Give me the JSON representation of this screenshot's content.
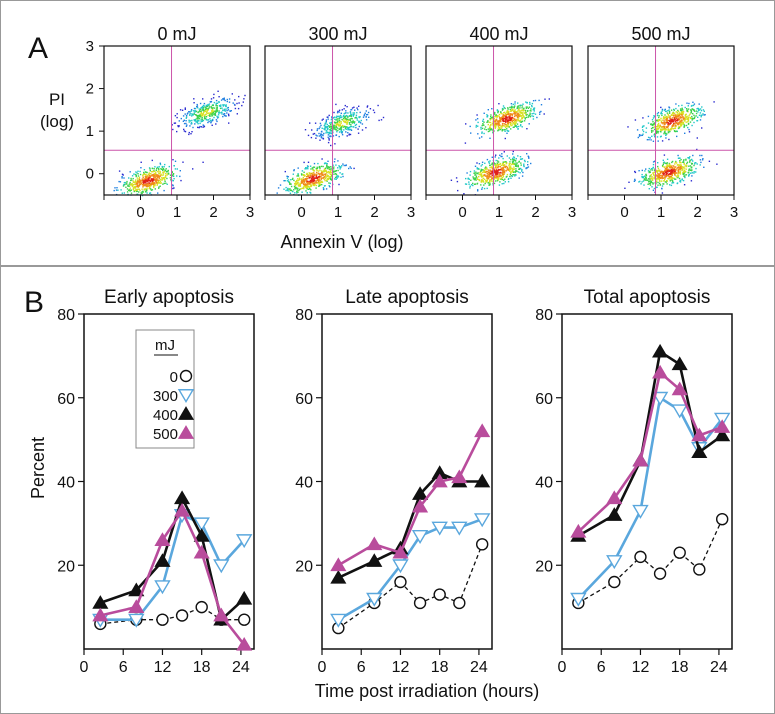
{
  "panel_a": {
    "letter": "A",
    "ylabel_line1": "PI",
    "ylabel_line2": "(log)",
    "xlabel": "Annexin V (log)",
    "x_ticks": [
      "0",
      "1",
      "2",
      "3"
    ],
    "y_ticks": [
      "0",
      "1",
      "2",
      "3"
    ],
    "plots": [
      {
        "title": "0 mJ"
      },
      {
        "title": "300 mJ"
      },
      {
        "title": "400 mJ"
      },
      {
        "title": "500 mJ"
      }
    ]
  },
  "panel_b": {
    "letter": "B",
    "ylabel": "Percent",
    "xlabel": "Time post irradiation (hours)",
    "legend": {
      "title": "mJ",
      "entries": [
        "0",
        "300",
        "400",
        "500"
      ]
    }
  },
  "colors": {
    "mj0": "#111111",
    "mj300": "#5aa7dd",
    "mj400": "#111111",
    "mj500": "#b94c9c",
    "gate": "#cc55aa",
    "frame": "#999999"
  },
  "chart_data": [
    {
      "type": "scatter",
      "title": "0 mJ",
      "xlabel": "Annexin V (log)",
      "ylabel": "PI (log)",
      "xlim": [
        -1,
        3
      ],
      "ylim": [
        -0.5,
        3
      ],
      "gate": {
        "x": 0.85,
        "y": 0.55
      },
      "clusters": [
        {
          "cx": 0.2,
          "cy": -0.15,
          "density": "high"
        },
        {
          "cx": 1.8,
          "cy": 1.45,
          "density": "medium"
        }
      ]
    },
    {
      "type": "scatter",
      "title": "300 mJ",
      "xlabel": "Annexin V (log)",
      "ylabel": "PI (log)",
      "xlim": [
        -1,
        3
      ],
      "ylim": [
        -0.5,
        3
      ],
      "gate": {
        "x": 0.85,
        "y": 0.55
      },
      "clusters": [
        {
          "cx": 0.3,
          "cy": -0.1,
          "density": "high"
        },
        {
          "cx": 1.1,
          "cy": 1.2,
          "density": "medium"
        }
      ]
    },
    {
      "type": "scatter",
      "title": "400 mJ",
      "xlabel": "Annexin V (log)",
      "ylabel": "PI (log)",
      "xlim": [
        -1,
        3
      ],
      "ylim": [
        -0.5,
        3
      ],
      "gate": {
        "x": 0.85,
        "y": 0.55
      },
      "clusters": [
        {
          "cx": 0.9,
          "cy": 0.05,
          "density": "high"
        },
        {
          "cx": 1.2,
          "cy": 1.3,
          "density": "high"
        }
      ]
    },
    {
      "type": "scatter",
      "title": "500 mJ",
      "xlabel": "Annexin V (log)",
      "ylabel": "PI (log)",
      "xlim": [
        -1,
        3
      ],
      "ylim": [
        -0.5,
        3
      ],
      "gate": {
        "x": 0.85,
        "y": 0.55
      },
      "clusters": [
        {
          "cx": 1.2,
          "cy": 0.05,
          "density": "high"
        },
        {
          "cx": 1.3,
          "cy": 1.25,
          "density": "high"
        }
      ]
    },
    {
      "type": "line",
      "title": "Early apoptosis",
      "xlabel": "",
      "ylabel": "Percent",
      "xlim": [
        0,
        26
      ],
      "ylim": [
        0,
        80
      ],
      "x_ticks": [
        0,
        6,
        12,
        18,
        24
      ],
      "y_ticks": [
        20,
        40,
        60,
        80
      ],
      "x": [
        2.5,
        8,
        12,
        15,
        18,
        21,
        24.5
      ],
      "series": [
        {
          "name": "0",
          "values": [
            6,
            7,
            7,
            8,
            10,
            7,
            7
          ]
        },
        {
          "name": "300",
          "values": [
            7,
            7,
            15,
            32,
            30,
            20,
            26
          ]
        },
        {
          "name": "400",
          "values": [
            11,
            14,
            21,
            36,
            27,
            7,
            12
          ]
        },
        {
          "name": "500",
          "values": [
            8,
            10,
            26,
            33,
            23,
            8,
            1
          ]
        }
      ]
    },
    {
      "type": "line",
      "title": "Late apoptosis",
      "xlabel": "",
      "ylabel": "",
      "xlim": [
        0,
        26
      ],
      "ylim": [
        0,
        80
      ],
      "x_ticks": [
        0,
        6,
        12,
        18,
        24
      ],
      "y_ticks": [
        20,
        40,
        60,
        80
      ],
      "x": [
        2.5,
        8,
        12,
        15,
        18,
        21,
        24.5
      ],
      "series": [
        {
          "name": "0",
          "values": [
            5,
            11,
            16,
            11,
            13,
            11,
            25
          ]
        },
        {
          "name": "300",
          "values": [
            7,
            12,
            20,
            27,
            29,
            29,
            31
          ]
        },
        {
          "name": "400",
          "values": [
            17,
            21,
            24,
            37,
            42,
            40,
            40
          ]
        },
        {
          "name": "500",
          "values": [
            20,
            25,
            23,
            34,
            40,
            41,
            52
          ]
        }
      ]
    },
    {
      "type": "line",
      "title": "Total apoptosis",
      "xlabel": "",
      "ylabel": "",
      "xlim": [
        0,
        26
      ],
      "ylim": [
        0,
        80
      ],
      "x_ticks": [
        0,
        6,
        12,
        18,
        24
      ],
      "y_ticks": [
        20,
        40,
        60,
        80
      ],
      "x": [
        2.5,
        8,
        12,
        15,
        18,
        21,
        24.5
      ],
      "series": [
        {
          "name": "0",
          "values": [
            11,
            16,
            22,
            18,
            23,
            19,
            31
          ]
        },
        {
          "name": "300",
          "values": [
            12,
            21,
            33,
            60,
            57,
            48,
            55
          ]
        },
        {
          "name": "400",
          "values": [
            27,
            32,
            45,
            71,
            68,
            47,
            51
          ]
        },
        {
          "name": "500",
          "values": [
            28,
            36,
            45,
            66,
            62,
            51,
            53
          ]
        }
      ]
    }
  ]
}
